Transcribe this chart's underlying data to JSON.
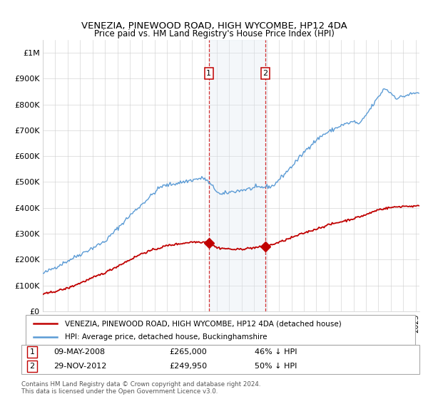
{
  "title": "VENEZIA, PINEWOOD ROAD, HIGH WYCOMBE, HP12 4DA",
  "subtitle": "Price paid vs. HM Land Registry's House Price Index (HPI)",
  "ylabel_ticks": [
    "£0",
    "£100K",
    "£200K",
    "£300K",
    "£400K",
    "£500K",
    "£600K",
    "£700K",
    "£800K",
    "£900K",
    "£1M"
  ],
  "ytick_values": [
    0,
    100000,
    200000,
    300000,
    400000,
    500000,
    600000,
    700000,
    800000,
    900000,
    1000000
  ],
  "ylim": [
    0,
    1050000
  ],
  "xlim_start": 1995.0,
  "xlim_end": 2025.3,
  "hpi_color": "#5b9bd5",
  "price_color": "#c00000",
  "highlight_color": "#dce6f1",
  "highlight_start": 2008.35,
  "highlight_end": 2013.0,
  "sale1_x": 2008.36,
  "sale1_y": 265000,
  "sale2_x": 2012.91,
  "sale2_y": 249950,
  "footer_text": "Contains HM Land Registry data © Crown copyright and database right 2024.\nThis data is licensed under the Open Government Licence v3.0.",
  "legend_line1": "VENEZIA, PINEWOOD ROAD, HIGH WYCOMBE, HP12 4DA (detached house)",
  "legend_line2": "HPI: Average price, detached house, Buckinghamshire"
}
